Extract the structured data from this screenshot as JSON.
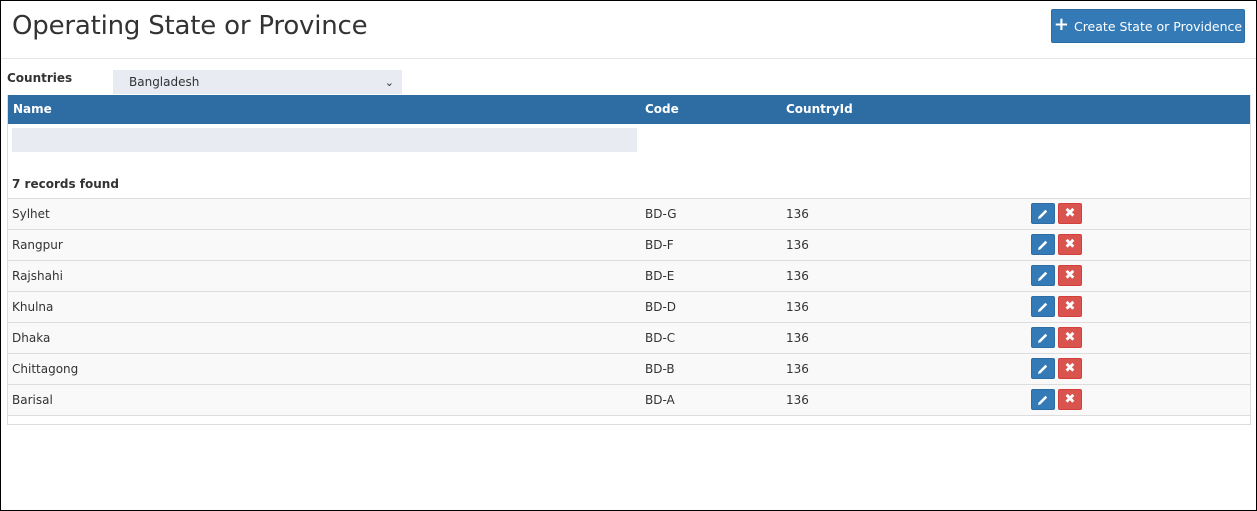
{
  "page": {
    "title": "Operating State or Province"
  },
  "toolbar": {
    "create_label": "Create State or Providence",
    "create_icon": "plus-icon"
  },
  "filter": {
    "label": "Countries",
    "selected": "Bangladesh"
  },
  "table": {
    "columns": [
      "Name",
      "Code",
      "CountryId"
    ],
    "name_filter_value": "",
    "records_text": "7 records found",
    "rows": [
      {
        "name": "Sylhet",
        "code": "BD-G",
        "country_id": "136"
      },
      {
        "name": "Rangpur",
        "code": "BD-F",
        "country_id": "136"
      },
      {
        "name": "Rajshahi",
        "code": "BD-E",
        "country_id": "136"
      },
      {
        "name": "Khulna",
        "code": "BD-D",
        "country_id": "136"
      },
      {
        "name": "Dhaka",
        "code": "BD-C",
        "country_id": "136"
      },
      {
        "name": "Chittagong",
        "code": "BD-B",
        "country_id": "136"
      },
      {
        "name": "Barisal",
        "code": "BD-A",
        "country_id": "136"
      }
    ]
  },
  "colors": {
    "primary": "#337ab7",
    "header": "#2e6da4",
    "danger": "#d9534f",
    "input_bg": "#e8ebf2"
  }
}
